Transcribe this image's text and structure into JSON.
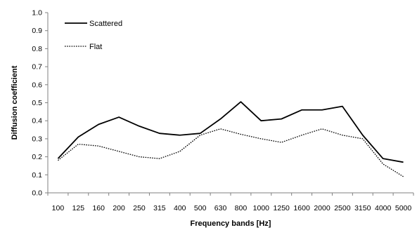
{
  "chart_data": {
    "type": "line",
    "title": "",
    "xlabel": "Frequency bands [Hz]",
    "ylabel": "Diffusion coefficient",
    "categories": [
      "100",
      "125",
      "160",
      "200",
      "250",
      "315",
      "400",
      "500",
      "630",
      "800",
      "1000",
      "1250",
      "1600",
      "2000",
      "2500",
      "3150",
      "4000",
      "5000"
    ],
    "ylim": [
      0,
      1
    ],
    "yticks": [
      "0.0",
      "0.1",
      "0.2",
      "0.3",
      "0.4",
      "0.5",
      "0.6",
      "0.7",
      "0.8",
      "0.9",
      "1.0"
    ],
    "grid": false,
    "legend_position": "top-left",
    "series": [
      {
        "name": "Scattered",
        "style": "solid",
        "color": "#000000",
        "values": [
          0.19,
          0.31,
          0.38,
          0.42,
          0.37,
          0.33,
          0.32,
          0.33,
          0.41,
          0.505,
          0.4,
          0.41,
          0.46,
          0.46,
          0.48,
          0.32,
          0.19,
          0.17
        ]
      },
      {
        "name": "Flat",
        "style": "dotted",
        "color": "#000000",
        "values": [
          0.18,
          0.27,
          0.26,
          0.23,
          0.2,
          0.19,
          0.23,
          0.32,
          0.355,
          0.325,
          0.3,
          0.28,
          0.32,
          0.355,
          0.32,
          0.3,
          0.16,
          0.09
        ]
      }
    ]
  }
}
